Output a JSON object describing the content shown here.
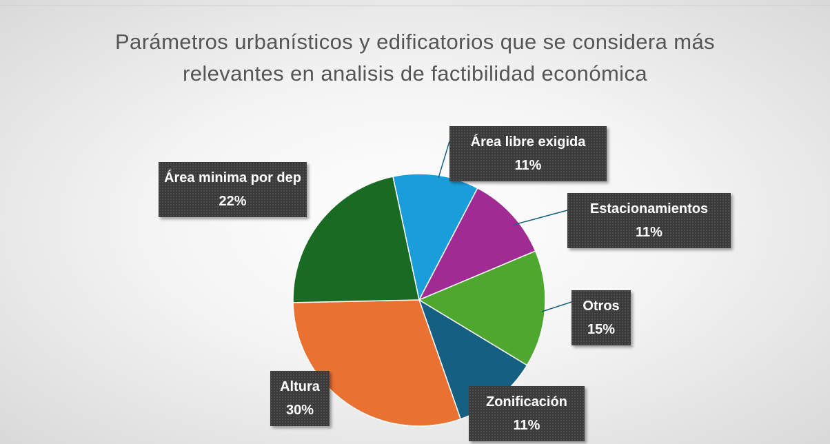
{
  "chart_data": {
    "type": "pie",
    "title": "Parámetros urbanísticos y edificatorios que se considera más relevantes en analisis de factibilidad económica",
    "categories": [
      "Área libre exigida",
      "Estacionamientos",
      "Otros",
      "Zonificación",
      "Altura",
      "Área minima por dep"
    ],
    "values": [
      11,
      11,
      15,
      11,
      30,
      22
    ],
    "value_labels": [
      "11%",
      "11%",
      "15%",
      "11%",
      "30%",
      "22%"
    ],
    "colors": [
      "#1a9ed9",
      "#a02b93",
      "#4ea72e",
      "#156082",
      "#e97132",
      "#196b24"
    ]
  }
}
